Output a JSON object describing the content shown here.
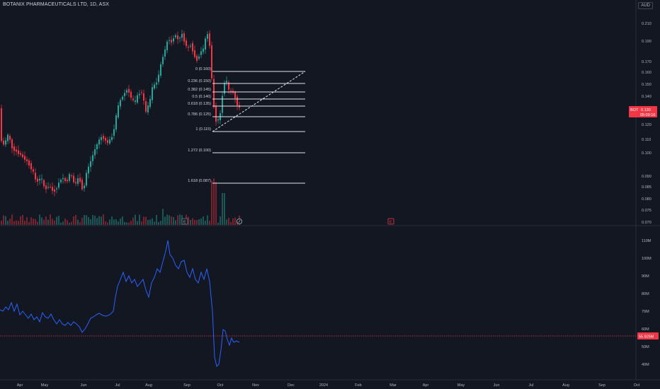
{
  "header": {
    "title": "BOTANIX PHARMACEUTICALS LTD, 1D, ASX",
    "currency": "AUD"
  },
  "price_axis": {
    "labels": [
      "0.210",
      "0.190",
      "0.170",
      "0.160",
      "0.150",
      "0.140",
      "0.130",
      "0.120",
      "0.110",
      "0.100",
      "0.090",
      "0.085",
      "0.080",
      "0.075",
      "0.070"
    ]
  },
  "last_price": {
    "symbol": "BOT",
    "value": "0.130",
    "countdown": "05:09:16",
    "color": "#f23645"
  },
  "fibonacci": {
    "levels": [
      {
        "label": "0 (0.160)"
      },
      {
        "label": "0.236 (0.150)"
      },
      {
        "label": "0.382 (0.145)"
      },
      {
        "label": "0.5 (0.140)"
      },
      {
        "label": "0.618 (0.135)"
      },
      {
        "label": "0.786 (0.125)"
      },
      {
        "label": "1 (0.115)"
      },
      {
        "label": "1.272 (0.100)"
      },
      {
        "label": "1.618 (0.087)"
      }
    ]
  },
  "indicator": {
    "axis_labels": [
      "110M",
      "100M",
      "90M",
      "80M",
      "70M",
      "60M",
      "50M",
      "40M"
    ],
    "current_value": "55.925M",
    "line_color": "#2962ff",
    "marker_color": "#f23645"
  },
  "time_axis": {
    "labels": [
      "Apr",
      "May",
      "Jun",
      "Jul",
      "Aug",
      "Sep",
      "Oct",
      "Nov",
      "Dec",
      "2024",
      "Feb",
      "Mar",
      "Apr",
      "May",
      "Jun",
      "Jul",
      "Aug",
      "Sep",
      "Oct"
    ]
  },
  "markers": {
    "earnings_left": "E",
    "earnings_right": "E"
  },
  "colors": {
    "up": "#26a69a",
    "down": "#f23645",
    "background": "#131722"
  }
}
